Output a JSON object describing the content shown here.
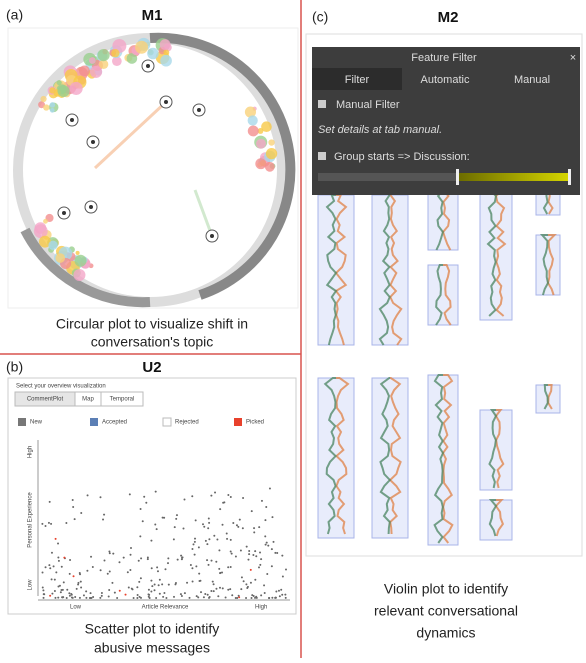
{
  "panel_a": {
    "label": "(a)",
    "title": "M1",
    "caption": [
      "Circular plot to visualize shift in",
      "conversation's topic"
    ]
  },
  "panel_b": {
    "label": "(b)",
    "title": "U2",
    "prompt": "Select your overview visualization",
    "tabs": [
      "CommentPlot",
      "Map",
      "Temporal"
    ],
    "legend": [
      "New",
      "Accepted",
      "Rejected",
      "Picked"
    ],
    "y_axis": {
      "label": "Personal Experience",
      "high": "High",
      "low": "Low"
    },
    "x_axis": {
      "label": "Article Relevance",
      "low": "Low",
      "high": "High"
    },
    "caption": [
      "Scatter plot to identify",
      "abusive messages"
    ]
  },
  "panel_c": {
    "label": "(c)",
    "title": "M2",
    "filter": {
      "title": "Feature Filter",
      "close": "×",
      "tabs": [
        "Filter",
        "Automatic",
        "Manual"
      ],
      "checkbox": "Manual Filter",
      "note": "Set details at tab manual.",
      "group": "Group starts => Discussion:"
    },
    "caption": [
      "Violin plot to identify",
      "relevant conversational",
      "dynamics"
    ]
  }
}
